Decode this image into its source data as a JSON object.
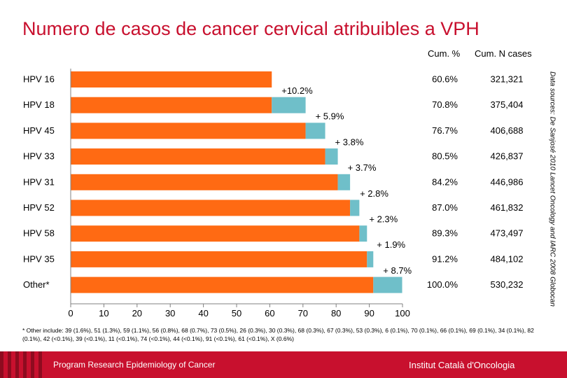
{
  "title": "Numero de casos de cancer cervical atribuibles a VPH",
  "columns": {
    "cum_pct": "Cum. %",
    "cum_n": "Cum. N cases"
  },
  "side_note": "Data sources: De Sanjosé 2010 Lancet Oncology and IARC 2008 Globocan",
  "footnote": "* Other include: 39 (1.6%), 51 (1.3%), 59 (1.1%), 56 (0.8%), 68 (0.7%), 73 (0.5%), 26 (0.3%), 30 (0.3%), 68 (0.3%), 67 (0.3%), 53 (0.3%), 6 (0.1%), 70 (0.1%), 66 (0.1%), 69 (0.1%), 34 (0.1%), 82 (0.1%), 42 (<0.1%), 39 (<0.1%), 11 (<0.1%), 74 (<0.1%), 44 (<0.1%), 91 (<0.1%), 61 (<0.1%), X (0.6%)",
  "footer": {
    "left": "Program Research Epidemiology of Cancer",
    "right": "Institut Català d'Oncologia"
  },
  "colors": {
    "orange": "#ff6a13",
    "teal": "#6fbfc9",
    "title": "#c8102e"
  },
  "chart_data": {
    "type": "bar",
    "orientation": "horizontal",
    "stacked": true,
    "categories": [
      "HPV 16",
      "HPV 18",
      "HPV 45",
      "HPV 33",
      "HPV 31",
      "HPV 52",
      "HPV 58",
      "HPV 35",
      "Other*"
    ],
    "series": [
      {
        "color": "#ff6a13",
        "values": [
          60.6,
          60.6,
          70.8,
          76.7,
          80.5,
          84.2,
          87.0,
          89.3,
          91.2
        ]
      },
      {
        "color": "#6fbfc9",
        "values": [
          0,
          10.2,
          5.9,
          3.8,
          3.7,
          2.8,
          2.3,
          1.9,
          8.7
        ]
      }
    ],
    "increments": [
      "+10.2%",
      "+ 5.9%",
      "+ 3.8%",
      "+ 3.7%",
      "+ 2.8%",
      "+ 2.3%",
      "+ 1.9%",
      "+ 8.7%"
    ],
    "cum_pct": [
      "60.6%",
      "70.8%",
      "76.7%",
      "80.5%",
      "84.2%",
      "87.0%",
      "89.3%",
      "91.2%",
      "100.0%"
    ],
    "cum_n": [
      "321,321",
      "375,404",
      "406,688",
      "426,837",
      "446,986",
      "461,832",
      "473,497",
      "484,102",
      "530,232"
    ],
    "xlim": [
      0,
      100
    ],
    "xticks": [
      0,
      10,
      20,
      30,
      40,
      50,
      60,
      70,
      80,
      90,
      100
    ],
    "grid": false,
    "legend": "none"
  }
}
